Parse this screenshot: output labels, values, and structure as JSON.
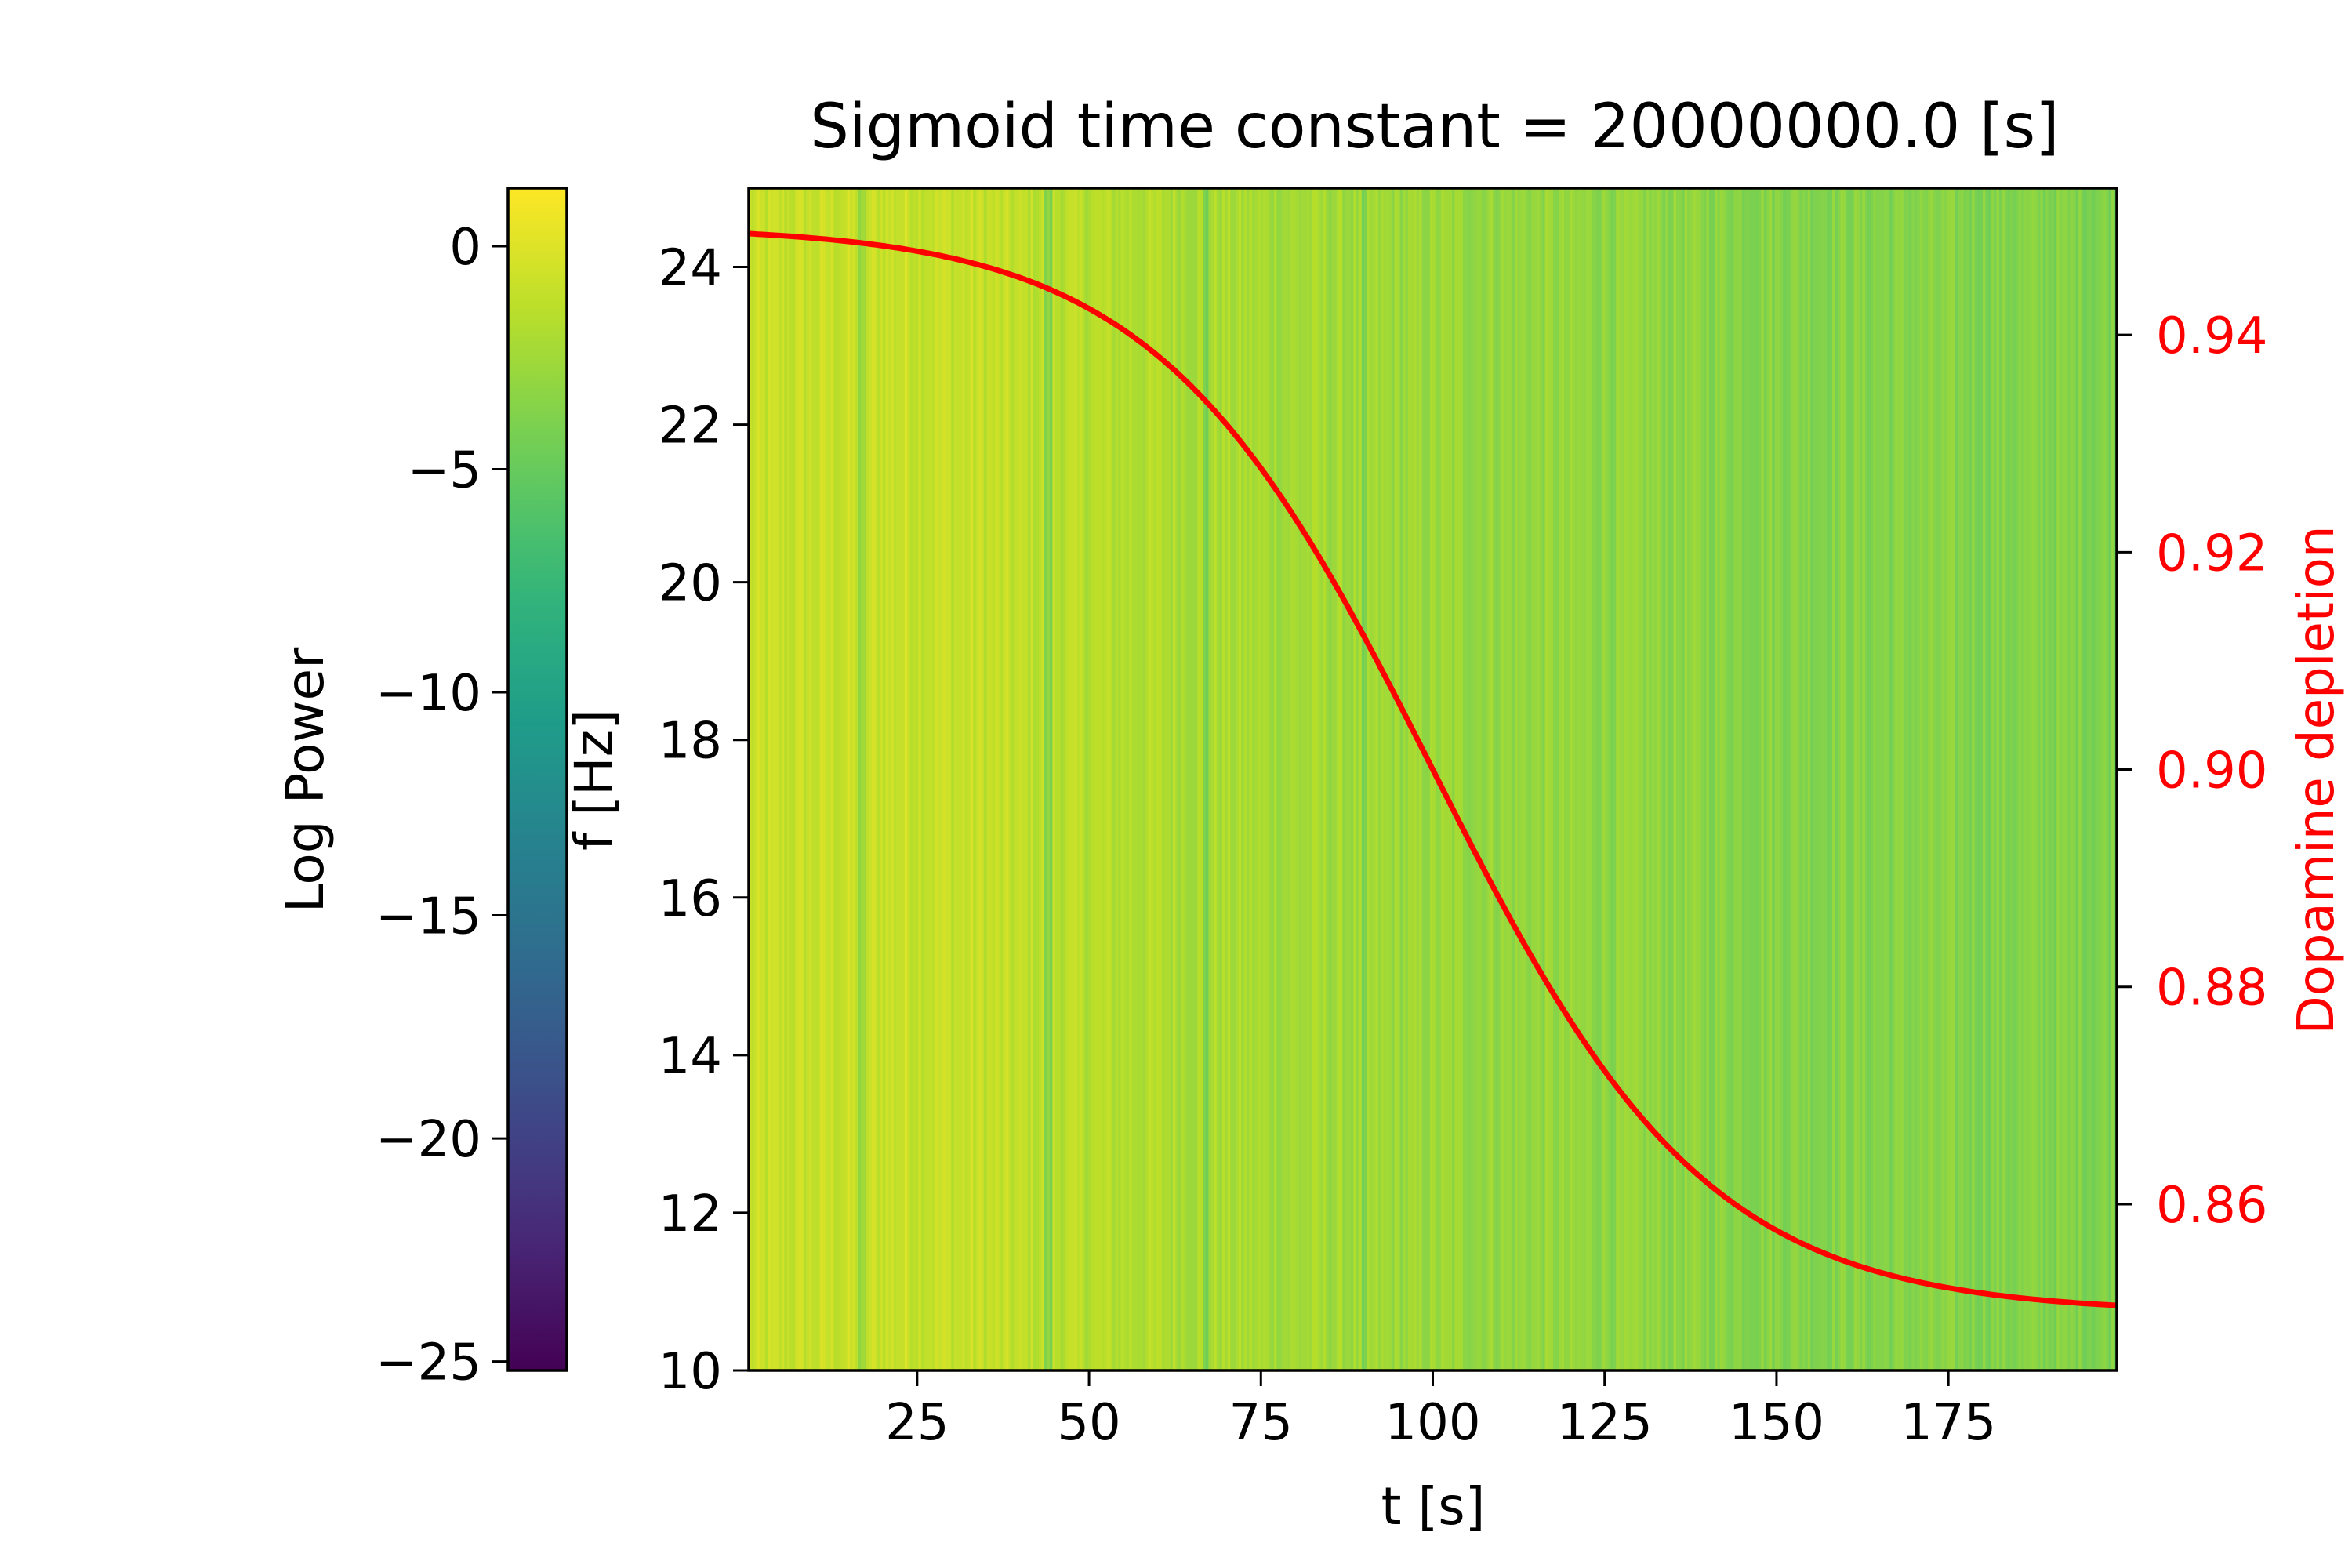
{
  "chart_data": {
    "type": "heatmap",
    "title": "Sigmoid time constant = 20000000.0 [s]",
    "xlabel": "t [s]",
    "ylabel": "f [Hz]",
    "y2label": "Dopamine depletion",
    "colorbar_label": "Log Power",
    "colormap": "viridis",
    "xlim": [
      0.5,
      199.5
    ],
    "ylim": [
      10,
      25
    ],
    "y2lim": [
      0.8447,
      0.9535
    ],
    "clim": [
      -25.2,
      1.3
    ],
    "xticks": [
      25,
      50,
      75,
      100,
      125,
      150,
      175
    ],
    "yticks": [
      10,
      12,
      14,
      16,
      18,
      20,
      22,
      24
    ],
    "y2ticks": [
      0.86,
      0.88,
      0.9,
      0.92,
      0.94
    ],
    "y2ticklabels": [
      "0.86",
      "0.88",
      "0.90",
      "0.92",
      "0.94"
    ],
    "cbar_ticks": [
      0,
      -5,
      -10,
      -15,
      -20,
      -25
    ],
    "cbar_ticklabels": [
      "0",
      "−5",
      "−10",
      "−15",
      "−20",
      "−25"
    ],
    "heatmap_trend": {
      "description": "log power per time column (roughly constant across frequency)",
      "t": [
        0,
        25,
        50,
        75,
        100,
        125,
        150,
        175,
        200
      ],
      "log_power": [
        -0.9,
        -0.6,
        -1.4,
        -2.1,
        -2.6,
        -3.0,
        -3.3,
        -3.5,
        -3.6
      ],
      "noise_amplitude": 0.9,
      "stripe_columns": [
        17,
        44,
        67,
        90
      ]
    },
    "series": [
      {
        "name": "Dopamine depletion",
        "axis": "right",
        "color": "#ff0000",
        "sigmoid": {
          "low": 0.85,
          "high": 0.95,
          "midpoint": 100,
          "scale": 20
        },
        "x": [
          0.5,
          25,
          50,
          75,
          100,
          125,
          150,
          175,
          199.5
        ],
        "values": [
          0.9498,
          0.9476,
          0.9381,
          0.9176,
          0.9,
          0.8824,
          0.8619,
          0.8524,
          0.8502
        ]
      }
    ]
  }
}
